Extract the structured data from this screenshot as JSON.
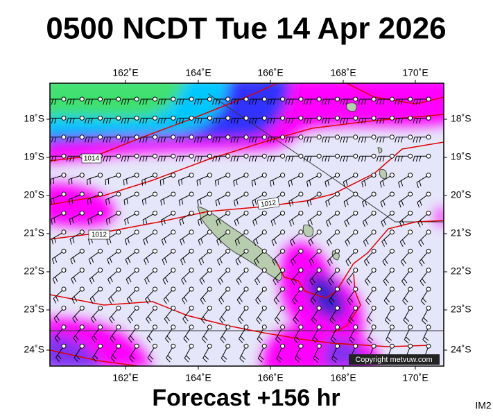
{
  "header": {
    "title": "0500 NCDT Tue 14 Apr 2026"
  },
  "map": {
    "lon_labels": [
      "162˚E",
      "164˚E",
      "166˚E",
      "168˚E",
      "170˚E"
    ],
    "lat_labels": [
      "18˚S",
      "19˚S",
      "20˚S",
      "21˚S",
      "22˚S",
      "23˚S",
      "24˚S"
    ],
    "isobar_labels": [
      "1014",
      "1012",
      "1012"
    ],
    "copyright": "Copyright metvuw.com"
  },
  "footer": {
    "forecast": "Forecast +156 hr",
    "image_id": "IM2"
  }
}
